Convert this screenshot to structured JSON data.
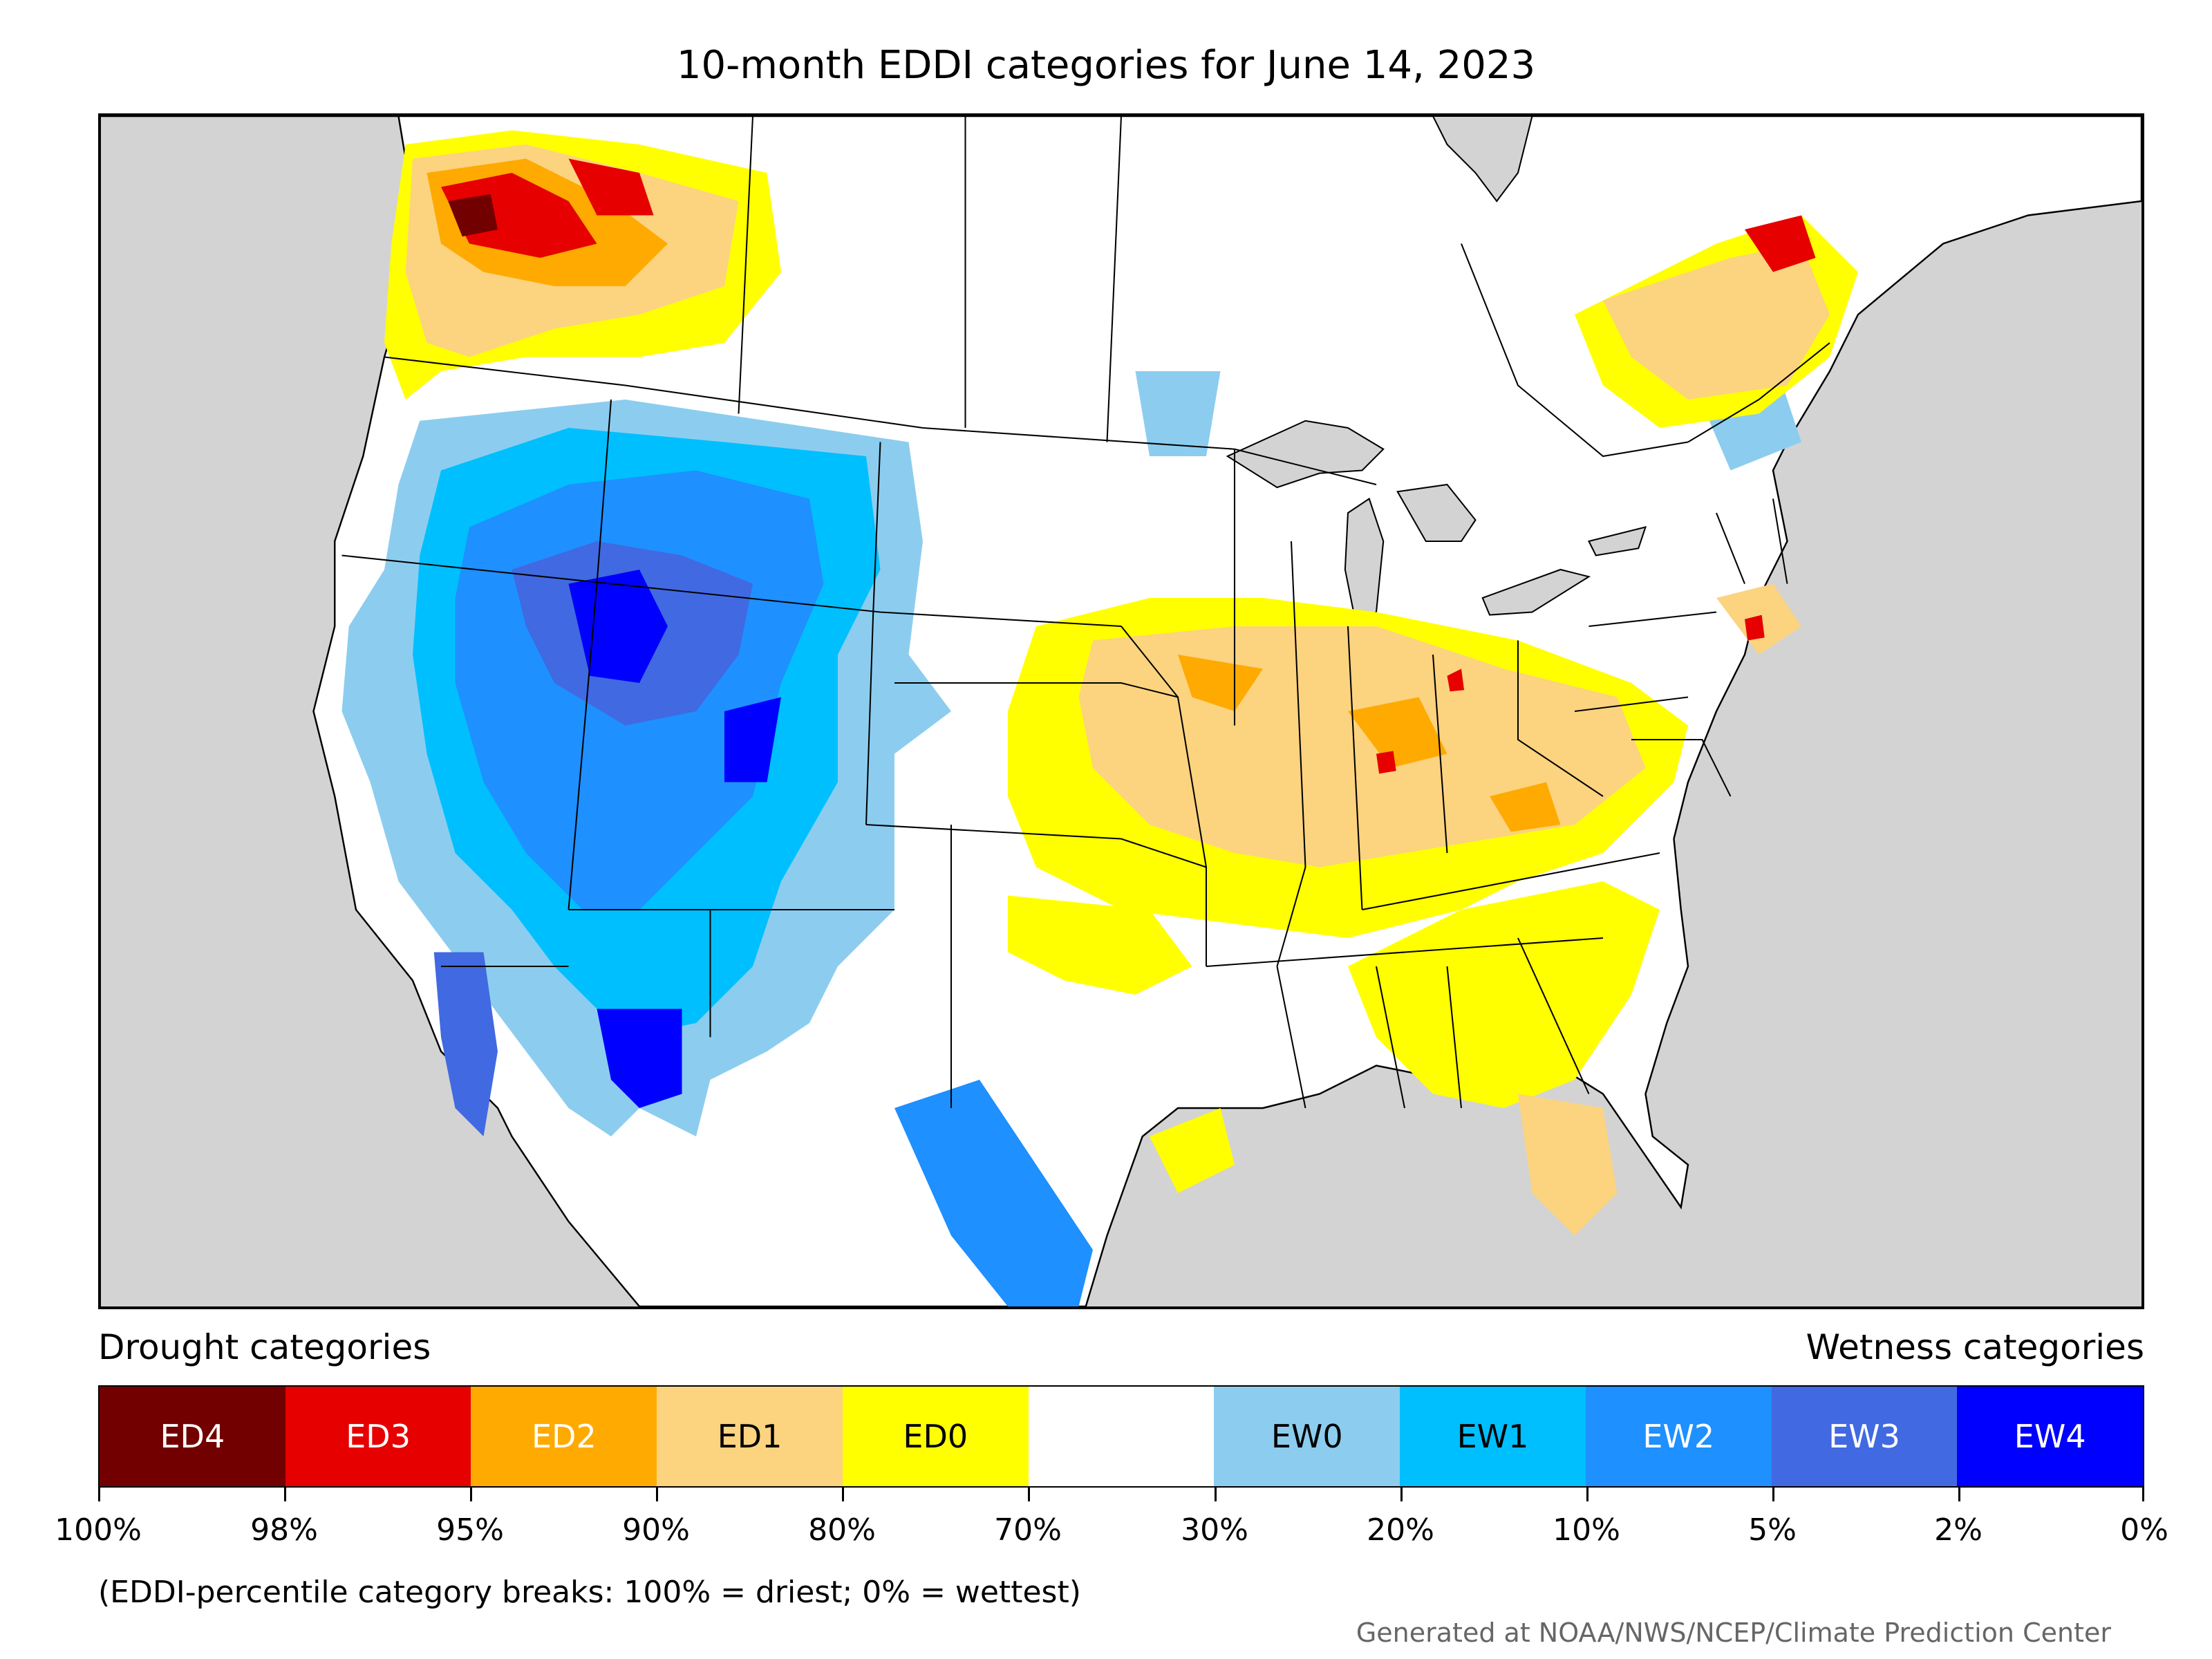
{
  "title": "10-month EDDI categories for June 14, 2023",
  "legend": {
    "drought_heading": "Drought categories",
    "wetness_heading": "Wetness categories",
    "categories": [
      {
        "label": "ED4",
        "color": "#730000",
        "text_color": "#ffffff"
      },
      {
        "label": "ED3",
        "color": "#e60000",
        "text_color": "#ffffff"
      },
      {
        "label": "ED2",
        "color": "#ffaa00",
        "text_color": "#ffffff"
      },
      {
        "label": "ED1",
        "color": "#fcd37f",
        "text_color": "#000000"
      },
      {
        "label": "ED0",
        "color": "#ffff00",
        "text_color": "#000000"
      },
      {
        "label": "",
        "color": "#ffffff",
        "text_color": "#000000"
      },
      {
        "label": "EW0",
        "color": "#8ccdef",
        "text_color": "#000000"
      },
      {
        "label": "EW1",
        "color": "#00bfff",
        "text_color": "#000000"
      },
      {
        "label": "EW2",
        "color": "#1e90ff",
        "text_color": "#ffffff"
      },
      {
        "label": "EW3",
        "color": "#4169e1",
        "text_color": "#ffffff"
      },
      {
        "label": "EW4",
        "color": "#0000ff",
        "text_color": "#ffffff"
      }
    ],
    "tick_labels": [
      "100%",
      "98%",
      "95%",
      "90%",
      "80%",
      "70%",
      "30%",
      "20%",
      "10%",
      "5%",
      "2%",
      "0%"
    ]
  },
  "note": "(EDDI-percentile category breaks: 100% = driest; 0% = wettest)",
  "credit": "Generated at NOAA/NWS/NCEP/Climate Prediction Center",
  "colors": {
    "ocean": "#d3d3d3",
    "land": "#ffffff"
  }
}
